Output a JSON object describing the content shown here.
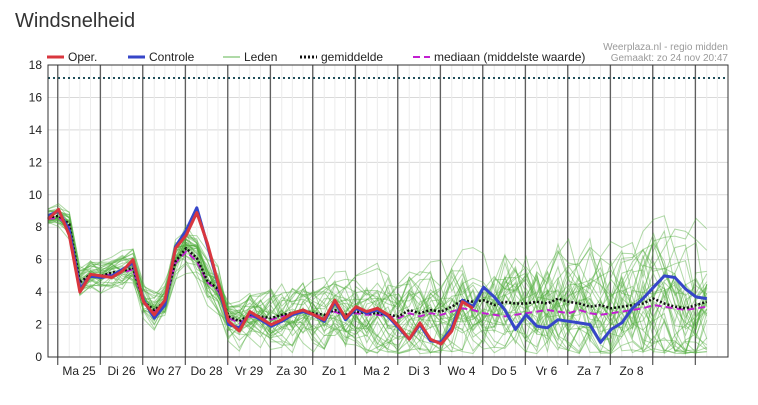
{
  "page": {
    "title": "Windsnelheid"
  },
  "credit": {
    "line1": "Weerplaza.nl - regio midden",
    "line2": "Gemaakt: zo 24 nov 20:47"
  },
  "colors": {
    "oper": "#d9363e",
    "controle": "#3646c8",
    "leden": "#4fae3c",
    "gemiddelde": "#111111",
    "mediaan": "#c21fd1",
    "threshold": "#1f4f5a",
    "grid": "#d9d9d9",
    "daySep": "#333333"
  },
  "chart_data": {
    "type": "line",
    "title": "Windsnelheid",
    "xlabel": "",
    "ylabel": "",
    "xlim": [
      0,
      16
    ],
    "ylim": [
      0,
      18
    ],
    "y_ticks": [
      0,
      2,
      4,
      6,
      8,
      10,
      12,
      14,
      16,
      18
    ],
    "x_day_boundaries": [
      0.23,
      1.23,
      2.23,
      3.23,
      4.23,
      5.23,
      6.23,
      7.23,
      8.23,
      9.23,
      10.23,
      11.23,
      12.23,
      13.23,
      14.23,
      15.23
    ],
    "x_labels": [
      {
        "label": "Ma 25",
        "x": 0.73
      },
      {
        "label": "Di 26",
        "x": 1.73
      },
      {
        "label": "Wo 27",
        "x": 2.73
      },
      {
        "label": "Do 28",
        "x": 3.73
      },
      {
        "label": "Vr 29",
        "x": 4.73
      },
      {
        "label": "Za 30",
        "x": 5.73
      },
      {
        "label": "Zo 1",
        "x": 6.73
      },
      {
        "label": "Ma 2",
        "x": 7.73
      },
      {
        "label": "Di 3",
        "x": 8.73
      },
      {
        "label": "Wo 4",
        "x": 9.73
      },
      {
        "label": "Do 5",
        "x": 10.73
      },
      {
        "label": "Vr 6",
        "x": 11.73
      },
      {
        "label": "Za 7",
        "x": 12.73
      },
      {
        "label": "Zo 8",
        "x": 13.73
      }
    ],
    "threshold": 17.2,
    "grid": true,
    "legend_position": "top",
    "legend": [
      {
        "key": "oper",
        "label": "Oper.",
        "style": "solid-thick"
      },
      {
        "key": "controle",
        "label": "Controle",
        "style": "solid-thick"
      },
      {
        "key": "leden",
        "label": "Leden",
        "style": "solid-thin"
      },
      {
        "key": "gemiddelde",
        "label": "gemiddelde",
        "style": "dotted"
      },
      {
        "key": "mediaan",
        "label": "mediaan (middelste waarde)",
        "style": "dashed"
      }
    ],
    "series": [
      {
        "key": "oper",
        "x": [
          0,
          0.25,
          0.5,
          0.75,
          1.0,
          1.25,
          1.5,
          1.75,
          2.0,
          2.25,
          2.5,
          2.75,
          3.0,
          3.25,
          3.5,
          3.75,
          4.0,
          4.25,
          4.5,
          4.75,
          5.0,
          5.25,
          5.5,
          5.75,
          6.0,
          6.25,
          6.5,
          6.75,
          7.0,
          7.25,
          7.5,
          7.75,
          8.0,
          8.25,
          8.5,
          8.75,
          9.0,
          9.25,
          9.5,
          9.75,
          10.0
        ],
        "y": [
          8.5,
          9.1,
          7.5,
          4.0,
          5.1,
          5.0,
          4.9,
          5.3,
          6.0,
          3.4,
          2.6,
          3.5,
          6.7,
          7.5,
          8.9,
          7.0,
          4.6,
          2.2,
          1.6,
          2.8,
          2.4,
          2.0,
          2.3,
          2.7,
          2.9,
          2.6,
          2.3,
          3.5,
          2.4,
          3.1,
          2.8,
          3.0,
          2.6,
          1.9,
          1.1,
          2.1,
          1.1,
          0.8,
          1.6,
          3.4,
          3.0
        ]
      },
      {
        "key": "controle",
        "x": [
          0,
          0.25,
          0.5,
          0.75,
          1.0,
          1.25,
          1.5,
          1.75,
          2.0,
          2.25,
          2.5,
          2.75,
          3.0,
          3.25,
          3.5,
          3.75,
          4.0,
          4.25,
          4.5,
          4.75,
          5.0,
          5.25,
          5.5,
          5.75,
          6.0,
          6.25,
          6.5,
          6.75,
          7.0,
          7.25,
          7.5,
          7.75,
          8.0,
          8.25,
          8.5,
          8.75,
          9.0,
          9.25,
          9.5,
          9.75,
          10.0,
          10.25,
          10.5,
          10.75,
          11.0,
          11.25,
          11.5,
          11.75,
          12.0,
          12.25,
          12.5,
          12.75,
          13.0,
          13.25,
          13.5,
          13.75,
          14.0,
          14.25,
          14.5,
          14.75,
          15.0,
          15.25,
          15.5
        ],
        "y": [
          8.7,
          9.0,
          7.8,
          4.2,
          5.0,
          4.9,
          5.0,
          5.4,
          5.8,
          3.5,
          2.4,
          3.2,
          6.8,
          7.8,
          9.2,
          6.9,
          4.5,
          2.0,
          1.8,
          2.7,
          2.3,
          1.9,
          2.2,
          2.6,
          2.8,
          2.6,
          2.2,
          3.4,
          2.3,
          3.0,
          2.7,
          2.9,
          2.5,
          1.8,
          1.1,
          2.0,
          1.0,
          0.9,
          1.8,
          3.5,
          3.1,
          4.3,
          3.7,
          2.9,
          1.7,
          2.6,
          1.9,
          1.8,
          2.3,
          2.2,
          2.1,
          2.0,
          0.9,
          1.7,
          2.1,
          3.0,
          3.6,
          4.3,
          5.0,
          4.9,
          4.2,
          3.7,
          3.6
        ]
      },
      {
        "key": "gemiddelde",
        "x": [
          0,
          0.25,
          0.5,
          0.75,
          1.0,
          1.25,
          1.5,
          1.75,
          2.0,
          2.25,
          2.5,
          2.75,
          3.0,
          3.25,
          3.5,
          3.75,
          4.0,
          4.25,
          4.5,
          4.75,
          5.0,
          5.25,
          5.5,
          5.75,
          6.0,
          6.25,
          6.5,
          6.75,
          7.0,
          7.25,
          7.5,
          7.75,
          8.0,
          8.25,
          8.5,
          8.75,
          9.0,
          9.25,
          9.5,
          9.75,
          10.0,
          10.25,
          10.5,
          10.75,
          11.0,
          11.25,
          11.5,
          11.75,
          12.0,
          12.25,
          12.5,
          12.75,
          13.0,
          13.25,
          13.5,
          13.75,
          14.0,
          14.25,
          14.5,
          14.75,
          15.0,
          15.25,
          15.5
        ],
        "y": [
          8.6,
          8.7,
          8.2,
          4.6,
          5.1,
          5.0,
          5.2,
          5.3,
          5.5,
          3.4,
          2.9,
          3.4,
          5.9,
          6.7,
          6.1,
          4.7,
          4.2,
          2.5,
          2.2,
          2.6,
          2.5,
          2.4,
          2.6,
          2.7,
          2.9,
          2.7,
          2.6,
          2.9,
          2.6,
          2.8,
          2.7,
          2.7,
          2.6,
          2.5,
          2.9,
          2.7,
          2.9,
          2.8,
          3.1,
          3.5,
          3.4,
          3.5,
          3.2,
          3.4,
          3.3,
          3.3,
          3.4,
          3.3,
          3.6,
          3.4,
          3.3,
          3.1,
          3.2,
          3.0,
          3.1,
          3.2,
          3.3,
          3.6,
          3.3,
          3.1,
          3.0,
          3.2,
          3.4
        ]
      },
      {
        "key": "mediaan",
        "x": [
          0,
          0.25,
          0.5,
          0.75,
          1.0,
          1.25,
          1.5,
          1.75,
          2.0,
          2.25,
          2.5,
          2.75,
          3.0,
          3.25,
          3.5,
          3.75,
          4.0,
          4.25,
          4.5,
          4.75,
          5.0,
          5.25,
          5.5,
          5.75,
          6.0,
          6.25,
          6.5,
          6.75,
          7.0,
          7.25,
          7.5,
          7.75,
          8.0,
          8.25,
          8.5,
          8.75,
          9.0,
          9.25,
          9.5,
          9.75,
          10.0,
          10.25,
          10.5,
          10.75,
          11.0,
          11.25,
          11.5,
          11.75,
          12.0,
          12.25,
          12.5,
          12.75,
          13.0,
          13.25,
          13.5,
          13.75,
          14.0,
          14.25,
          14.5,
          14.75,
          15.0,
          15.25,
          15.5
        ],
        "y": [
          8.5,
          8.6,
          8.0,
          4.5,
          5.0,
          5.0,
          5.1,
          5.2,
          5.4,
          3.3,
          2.8,
          3.3,
          5.8,
          6.5,
          5.9,
          4.6,
          4.1,
          2.4,
          2.1,
          2.5,
          2.4,
          2.3,
          2.5,
          2.6,
          2.8,
          2.6,
          2.5,
          2.8,
          2.5,
          2.7,
          2.6,
          2.6,
          2.5,
          2.4,
          2.7,
          2.5,
          2.7,
          2.6,
          2.8,
          3.0,
          2.9,
          2.7,
          2.6,
          2.5,
          2.6,
          2.7,
          2.8,
          2.9,
          2.8,
          2.7,
          2.9,
          2.7,
          2.6,
          2.7,
          2.8,
          2.9,
          3.0,
          3.2,
          3.1,
          3.0,
          2.9,
          3.0,
          3.1
        ]
      }
    ]
  }
}
